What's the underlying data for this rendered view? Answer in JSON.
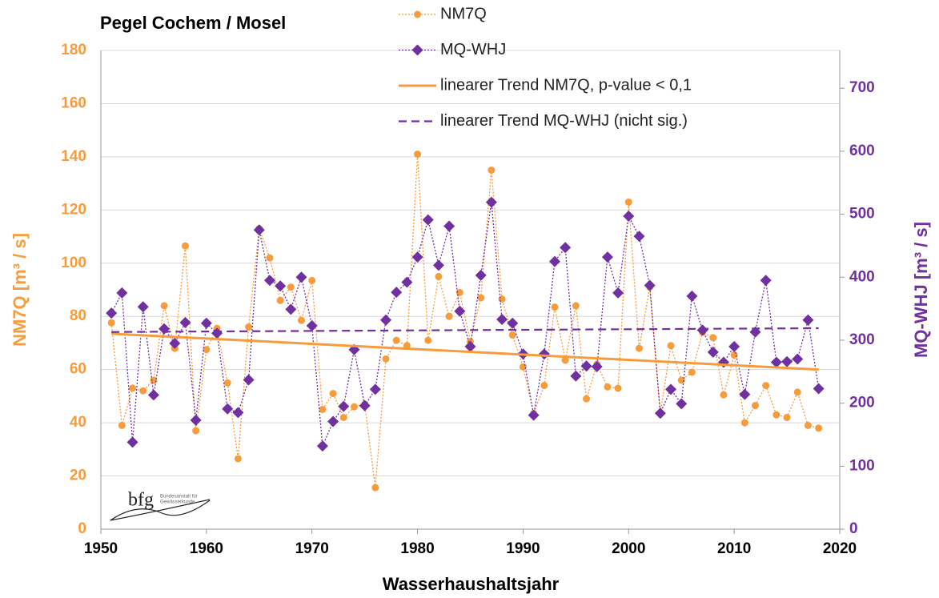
{
  "chart_data": {
    "type": "line",
    "title": "Pegel Cochem / Mosel",
    "xlabel": "Wasserhaushaltsjahr",
    "ylabel": "NM7Q [m³ / s]",
    "y2label": "MQ-WHJ [m³ / s]",
    "x": [
      1951,
      1952,
      1953,
      1954,
      1955,
      1956,
      1957,
      1958,
      1959,
      1960,
      1961,
      1962,
      1963,
      1964,
      1965,
      1966,
      1967,
      1968,
      1969,
      1970,
      1971,
      1972,
      1973,
      1974,
      1975,
      1976,
      1977,
      1978,
      1979,
      1980,
      1981,
      1982,
      1983,
      1984,
      1985,
      1986,
      1987,
      1988,
      1989,
      1990,
      1991,
      1992,
      1993,
      1994,
      1995,
      1996,
      1997,
      1998,
      1999,
      2000,
      2001,
      2002,
      2003,
      2004,
      2005,
      2006,
      2007,
      2008,
      2009,
      2010,
      2011,
      2012,
      2013,
      2014,
      2015,
      2016,
      2017,
      2018
    ],
    "series": [
      {
        "name": "NM7Q",
        "color": "#f79c3c",
        "line_style": "dotted",
        "marker": "circle",
        "values": [
          77.6,
          39,
          53,
          52,
          56,
          84,
          68,
          106.5,
          37,
          67.5,
          75.5,
          55,
          26.5,
          76,
          113,
          102,
          86,
          91,
          78.5,
          93.5,
          45,
          51,
          42,
          46,
          47,
          15.6,
          64,
          71,
          69,
          141,
          71,
          95,
          80,
          89,
          70.5,
          87,
          135,
          86.5,
          73,
          61,
          43.5,
          54,
          83.5,
          63.5,
          84,
          49,
          62,
          53.5,
          53,
          123,
          68,
          91,
          43.5,
          69,
          56,
          59,
          74,
          72,
          50.5,
          65.5,
          40,
          46.5,
          54,
          43,
          42,
          51.5,
          39,
          38
        ]
      },
      {
        "name": "MQ-WHJ",
        "color": "#7030a0",
        "axis": "y2",
        "line_style": "dotted",
        "marker": "diamond",
        "values": [
          343,
          375,
          138,
          353,
          213,
          318,
          295,
          328,
          173,
          327,
          311,
          191,
          185,
          237,
          475,
          395,
          386,
          349,
          400,
          323,
          132,
          171,
          195,
          285,
          196,
          222,
          332,
          376,
          392,
          432,
          491,
          419,
          481,
          346,
          290,
          403,
          519,
          333,
          327,
          278,
          181,
          278,
          425,
          447,
          243,
          259,
          258,
          432,
          375,
          497,
          465,
          387,
          184,
          222,
          199,
          370,
          316,
          281,
          265,
          290,
          214,
          313,
          395,
          265,
          266,
          270,
          332,
          223
        ]
      },
      {
        "name": "linearer Trend NM7Q, p-value < 0,1",
        "color": "#f79c3c",
        "line_style": "solid",
        "x": [
          1951,
          2018
        ],
        "values": [
          73.5,
          60
        ]
      },
      {
        "name": "linearer Trend MQ-WHJ (nicht sig.)",
        "color": "#7030a0",
        "axis": "y2",
        "line_style": "dashed",
        "x": [
          1951,
          2018
        ],
        "values": [
          313,
          319
        ]
      }
    ],
    "xlim": [
      1950,
      2020
    ],
    "xticks": [
      1950,
      1960,
      1970,
      1980,
      1990,
      2000,
      2010,
      2020
    ],
    "ylim": [
      0,
      180
    ],
    "yticks": [
      0,
      20,
      40,
      60,
      80,
      100,
      120,
      140,
      160,
      180
    ],
    "y2lim": [
      0,
      760
    ],
    "y2ticks": [
      0,
      100,
      200,
      300,
      400,
      500,
      600,
      700
    ],
    "grid": true,
    "legend": "top"
  },
  "logo": {
    "name": "bfg",
    "subtitle": [
      "Bundesanstalt für",
      "Gewässerkunde"
    ]
  }
}
